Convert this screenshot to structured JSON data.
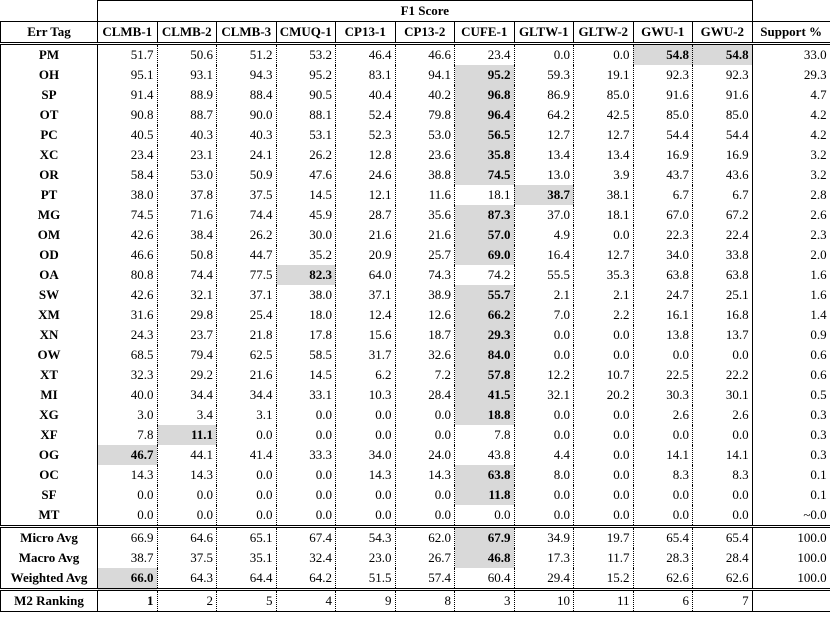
{
  "table": {
    "group_header": "F1 Score",
    "columns": [
      "Err Tag",
      "CLMB-1",
      "CLMB-2",
      "CLMB-3",
      "CMUQ-1",
      "CP13-1",
      "CP13-2",
      "CUFE-1",
      "GLTW-1",
      "GLTW-2",
      "GWU-1",
      "GWU-2",
      "Support %"
    ],
    "sections": [
      {
        "rows": [
          {
            "tag": "PM",
            "values": [
              "51.7",
              "50.6",
              "51.2",
              "53.2",
              "46.4",
              "46.6",
              "23.4",
              "0.0",
              "0.0",
              "54.8",
              "54.8"
            ],
            "support": "33.0",
            "best": [
              9,
              10
            ]
          },
          {
            "tag": "OH",
            "values": [
              "95.1",
              "93.1",
              "94.3",
              "95.2",
              "83.1",
              "94.1",
              "95.2",
              "59.3",
              "19.1",
              "92.3",
              "92.3"
            ],
            "support": "29.3",
            "best": [
              6
            ]
          },
          {
            "tag": "SP",
            "values": [
              "91.4",
              "88.9",
              "88.4",
              "90.5",
              "40.4",
              "40.2",
              "96.8",
              "86.9",
              "85.0",
              "91.6",
              "91.6"
            ],
            "support": "4.7",
            "best": [
              6
            ]
          },
          {
            "tag": "OT",
            "values": [
              "90.8",
              "88.7",
              "90.0",
              "88.1",
              "52.4",
              "79.8",
              "96.4",
              "64.2",
              "42.5",
              "85.0",
              "85.0"
            ],
            "support": "4.2",
            "best": [
              6
            ]
          },
          {
            "tag": "PC",
            "values": [
              "40.5",
              "40.3",
              "40.3",
              "53.1",
              "52.3",
              "53.0",
              "56.5",
              "12.7",
              "12.7",
              "54.4",
              "54.4"
            ],
            "support": "4.2",
            "best": [
              6
            ]
          },
          {
            "tag": "XC",
            "values": [
              "23.4",
              "23.1",
              "24.1",
              "26.2",
              "12.8",
              "23.6",
              "35.8",
              "13.4",
              "13.4",
              "16.9",
              "16.9"
            ],
            "support": "3.2",
            "best": [
              6
            ]
          },
          {
            "tag": "OR",
            "values": [
              "58.4",
              "53.0",
              "50.9",
              "47.6",
              "24.6",
              "38.8",
              "74.5",
              "13.0",
              "3.9",
              "43.7",
              "43.6"
            ],
            "support": "3.2",
            "best": [
              6
            ]
          },
          {
            "tag": "PT",
            "values": [
              "38.0",
              "37.8",
              "37.5",
              "14.5",
              "12.1",
              "11.6",
              "18.1",
              "38.7",
              "38.1",
              "6.7",
              "6.7"
            ],
            "support": "2.8",
            "best": [
              7
            ]
          },
          {
            "tag": "MG",
            "values": [
              "74.5",
              "71.6",
              "74.4",
              "45.9",
              "28.7",
              "35.6",
              "87.3",
              "37.0",
              "18.1",
              "67.0",
              "67.2"
            ],
            "support": "2.6",
            "best": [
              6
            ]
          },
          {
            "tag": "OM",
            "values": [
              "42.6",
              "38.4",
              "26.2",
              "30.0",
              "21.6",
              "21.6",
              "57.0",
              "4.9",
              "0.0",
              "22.3",
              "22.4"
            ],
            "support": "2.3",
            "best": [
              6
            ]
          },
          {
            "tag": "OD",
            "values": [
              "46.6",
              "50.8",
              "44.7",
              "35.2",
              "20.9",
              "25.7",
              "69.0",
              "16.4",
              "12.7",
              "34.0",
              "33.8"
            ],
            "support": "2.0",
            "best": [
              6
            ]
          },
          {
            "tag": "OA",
            "values": [
              "80.8",
              "74.4",
              "77.5",
              "82.3",
              "64.0",
              "74.3",
              "74.2",
              "55.5",
              "35.3",
              "63.8",
              "63.8"
            ],
            "support": "1.6",
            "best": [
              3
            ]
          },
          {
            "tag": "SW",
            "values": [
              "42.6",
              "32.1",
              "37.1",
              "38.0",
              "37.1",
              "38.9",
              "55.7",
              "2.1",
              "2.1",
              "24.7",
              "25.1"
            ],
            "support": "1.6",
            "best": [
              6
            ]
          },
          {
            "tag": "XM",
            "values": [
              "31.6",
              "29.8",
              "25.4",
              "18.0",
              "12.4",
              "12.6",
              "66.2",
              "7.0",
              "2.2",
              "16.1",
              "16.8"
            ],
            "support": "1.4",
            "best": [
              6
            ]
          },
          {
            "tag": "XN",
            "values": [
              "24.3",
              "23.7",
              "21.8",
              "17.8",
              "15.6",
              "18.7",
              "29.3",
              "0.0",
              "0.0",
              "13.8",
              "13.7"
            ],
            "support": "0.9",
            "best": [
              6
            ]
          },
          {
            "tag": "OW",
            "values": [
              "68.5",
              "79.4",
              "62.5",
              "58.5",
              "31.7",
              "32.6",
              "84.0",
              "0.0",
              "0.0",
              "0.0",
              "0.0"
            ],
            "support": "0.6",
            "best": [
              6
            ]
          },
          {
            "tag": "XT",
            "values": [
              "32.3",
              "29.2",
              "21.6",
              "14.5",
              "6.2",
              "7.2",
              "57.8",
              "12.2",
              "10.7",
              "22.5",
              "22.2"
            ],
            "support": "0.6",
            "best": [
              6
            ]
          },
          {
            "tag": "MI",
            "values": [
              "40.0",
              "34.4",
              "34.4",
              "33.1",
              "10.3",
              "28.4",
              "41.5",
              "32.1",
              "20.2",
              "30.3",
              "30.1"
            ],
            "support": "0.5",
            "best": [
              6
            ]
          },
          {
            "tag": "XG",
            "values": [
              "3.0",
              "3.4",
              "3.1",
              "0.0",
              "0.0",
              "0.0",
              "18.8",
              "0.0",
              "0.0",
              "2.6",
              "2.6"
            ],
            "support": "0.3",
            "best": [
              6
            ]
          },
          {
            "tag": "XF",
            "values": [
              "7.8",
              "11.1",
              "0.0",
              "0.0",
              "0.0",
              "0.0",
              "7.8",
              "0.0",
              "0.0",
              "0.0",
              "0.0"
            ],
            "support": "0.3",
            "best": [
              1
            ]
          },
          {
            "tag": "OG",
            "values": [
              "46.7",
              "44.1",
              "41.4",
              "33.3",
              "34.0",
              "24.0",
              "43.8",
              "4.4",
              "0.0",
              "14.1",
              "14.1"
            ],
            "support": "0.3",
            "best": [
              0
            ]
          },
          {
            "tag": "OC",
            "values": [
              "14.3",
              "14.3",
              "0.0",
              "0.0",
              "14.3",
              "14.3",
              "63.8",
              "8.0",
              "0.0",
              "8.3",
              "8.3"
            ],
            "support": "0.1",
            "best": [
              6
            ]
          },
          {
            "tag": "SF",
            "values": [
              "0.0",
              "0.0",
              "0.0",
              "0.0",
              "0.0",
              "0.0",
              "11.8",
              "0.0",
              "0.0",
              "0.0",
              "0.0"
            ],
            "support": "0.1",
            "best": [
              6
            ]
          },
          {
            "tag": "MT",
            "values": [
              "0.0",
              "0.0",
              "0.0",
              "0.0",
              "0.0",
              "0.0",
              "0.0",
              "0.0",
              "0.0",
              "0.0",
              "0.0"
            ],
            "support": "~0.0",
            "best": []
          }
        ]
      },
      {
        "rows": [
          {
            "tag": "Micro Avg",
            "values": [
              "66.9",
              "64.6",
              "65.1",
              "67.4",
              "54.3",
              "62.0",
              "67.9",
              "34.9",
              "19.7",
              "65.4",
              "65.4"
            ],
            "support": "100.0",
            "best": [
              6
            ]
          },
          {
            "tag": "Macro Avg",
            "values": [
              "38.7",
              "37.5",
              "35.1",
              "32.4",
              "23.0",
              "26.7",
              "46.8",
              "17.3",
              "11.7",
              "28.3",
              "28.4"
            ],
            "support": "100.0",
            "best": [
              6
            ]
          },
          {
            "tag": "Weighted Avg",
            "values": [
              "66.0",
              "64.3",
              "64.4",
              "64.2",
              "51.5",
              "57.4",
              "60.4",
              "29.4",
              "15.2",
              "62.6",
              "62.6"
            ],
            "support": "100.0",
            "best": [
              0
            ]
          }
        ]
      },
      {
        "rows": [
          {
            "tag": "M2 Ranking",
            "values": [
              "1",
              "2",
              "5",
              "4",
              "9",
              "8",
              "3",
              "10",
              "11",
              "6",
              "7"
            ],
            "bold": [
              0
            ]
          }
        ]
      }
    ]
  }
}
